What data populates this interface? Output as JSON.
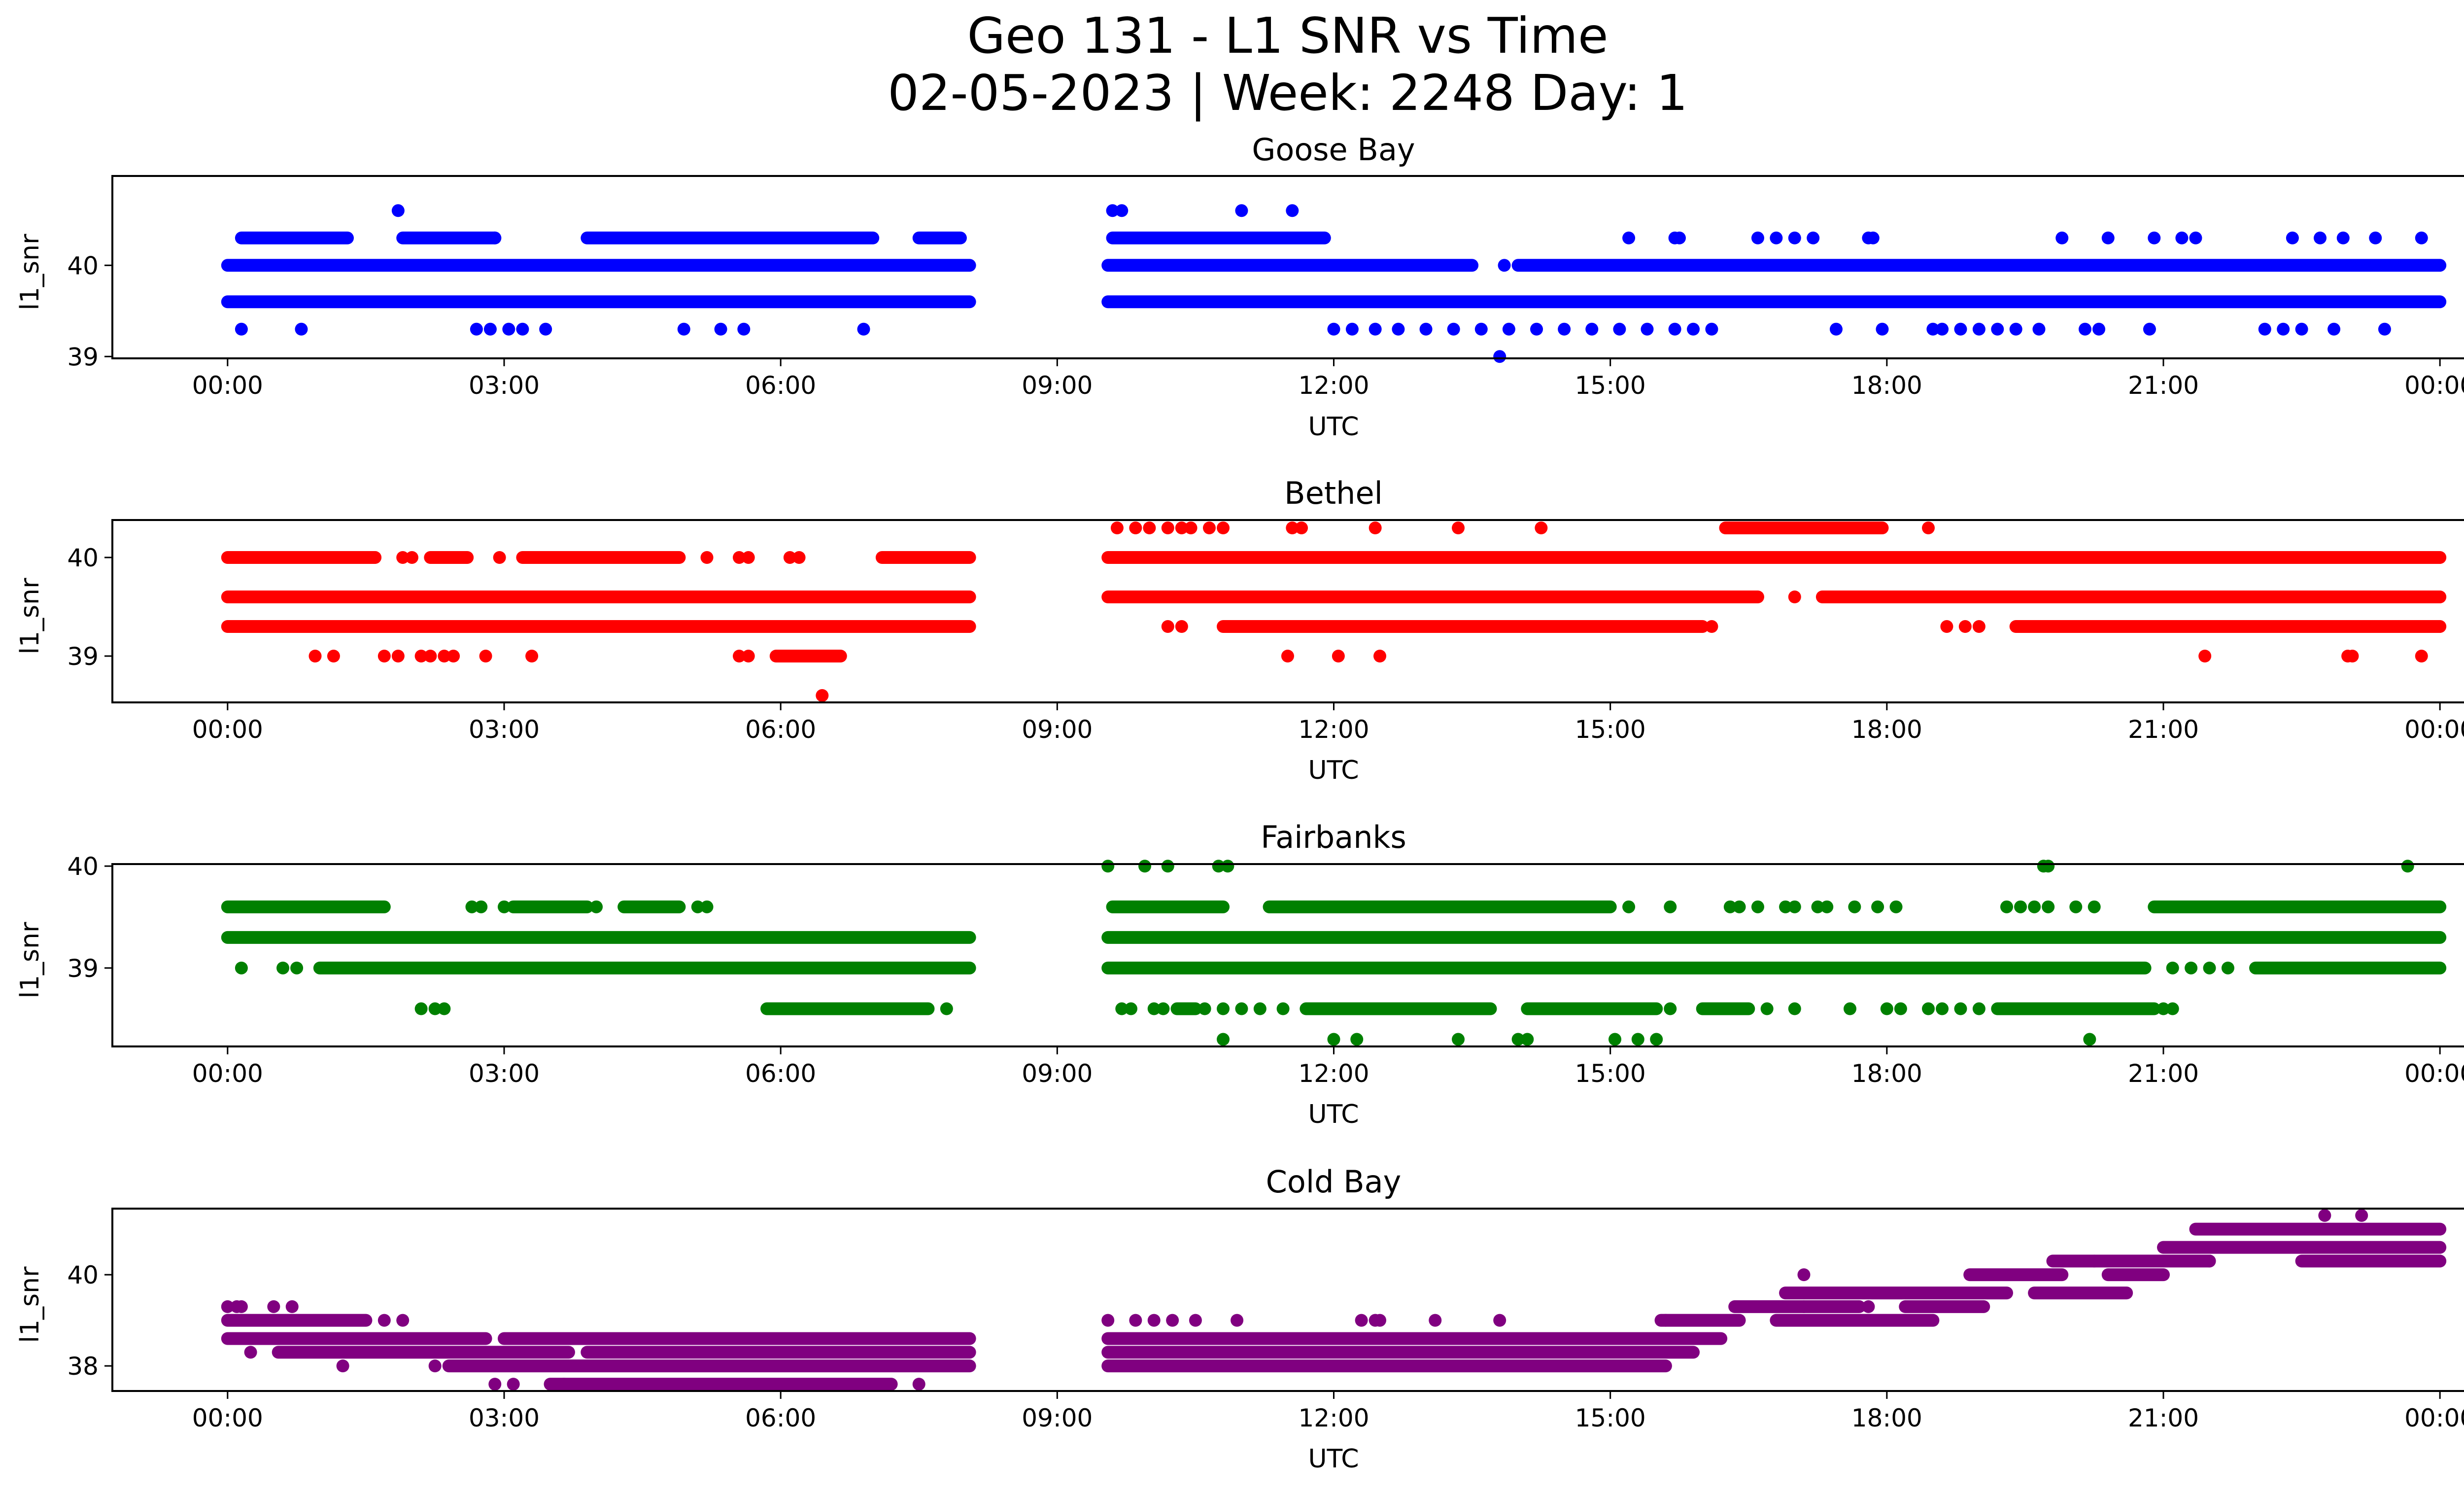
{
  "figure": {
    "title_line1": "Geo 131 - L1 SNR vs Time",
    "title_line2": "02-05-2023 | Week: 2248 Day: 1"
  },
  "chart_data": [
    {
      "type": "scatter",
      "title": "Goose Bay",
      "xlabel": "UTC",
      "ylabel": "l1_snr",
      "color": "#0000ff",
      "xlim": [
        -1.25,
        25.25
      ],
      "ylim": [
        38.98,
        40.98
      ],
      "xticks": [
        "00:00",
        "03:00",
        "06:00",
        "09:00",
        "12:00",
        "15:00",
        "18:00",
        "21:00",
        "00:00"
      ],
      "yticks": [
        39,
        40
      ],
      "data_gap": [
        8.05,
        9.55
      ],
      "levels": [
        {
          "y": 40.6,
          "points": [
            1.85,
            9.6,
            9.7,
            11.0,
            11.55
          ]
        },
        {
          "y": 40.3,
          "segments": [
            [
              0.15,
              1.3
            ],
            [
              1.9,
              2.9
            ],
            [
              3.9,
              7.0
            ],
            [
              7.5,
              7.95
            ],
            [
              9.6,
              11.9
            ]
          ],
          "points": [
            2.9,
            15.2,
            15.7,
            15.75,
            16.6,
            16.8,
            17.0,
            17.2,
            17.8,
            17.85,
            19.9,
            20.4,
            20.9,
            21.2,
            21.35,
            22.4,
            22.7,
            22.95,
            23.3,
            23.8
          ]
        },
        {
          "y": 40.0,
          "segments": [
            [
              0.0,
              8.05
            ],
            [
              9.55,
              13.5
            ],
            [
              14.0,
              24.0
            ]
          ],
          "points": [
            13.85
          ]
        },
        {
          "y": 39.6,
          "segments": [
            [
              0.0,
              8.05
            ],
            [
              9.55,
              24.0
            ]
          ]
        },
        {
          "y": 39.3,
          "points": [
            0.15,
            0.8,
            2.7,
            2.85,
            3.05,
            3.2,
            3.45,
            4.95,
            5.35,
            5.6,
            6.9,
            12.0,
            12.2,
            12.45,
            12.7,
            13.0,
            13.3,
            13.6,
            13.9,
            14.2,
            14.5,
            14.8,
            15.1,
            15.4,
            15.7,
            15.9,
            16.1,
            17.45,
            17.95,
            18.5,
            18.6,
            18.8,
            19.0,
            19.2,
            19.4,
            19.65,
            20.15,
            20.3,
            20.85,
            22.1,
            22.3,
            22.5,
            22.85,
            23.4
          ]
        },
        {
          "y": 39.0,
          "points": [
            13.8
          ]
        }
      ]
    },
    {
      "type": "scatter",
      "title": "Bethel",
      "xlabel": "UTC",
      "ylabel": "l1_snr",
      "color": "#ff0000",
      "xlim": [
        -1.25,
        25.25
      ],
      "ylim": [
        38.53,
        40.38
      ],
      "xticks": [
        "00:00",
        "03:00",
        "06:00",
        "09:00",
        "12:00",
        "15:00",
        "18:00",
        "21:00",
        "00:00"
      ],
      "yticks": [
        39,
        40
      ],
      "data_gap": [
        8.05,
        9.55
      ],
      "levels": [
        {
          "y": 40.3,
          "points": [
            9.65,
            9.85,
            10.0,
            10.2,
            10.35,
            10.45,
            10.65,
            10.8,
            11.55,
            11.65,
            12.45,
            13.35,
            14.25,
            18.45
          ],
          "segments": [
            [
              16.25,
              17.95
            ]
          ]
        },
        {
          "y": 40.0,
          "segments": [
            [
              0.0,
              1.6
            ],
            [
              2.2,
              2.6
            ],
            [
              3.2,
              4.9
            ],
            [
              7.1,
              8.05
            ],
            [
              9.55,
              24.0
            ]
          ],
          "points": [
            1.9,
            2.0,
            2.95,
            5.2,
            5.55,
            5.65,
            6.1,
            6.2
          ]
        },
        {
          "y": 39.6,
          "segments": [
            [
              0.0,
              8.05
            ],
            [
              9.55,
              16.6
            ],
            [
              17.3,
              24.0
            ]
          ],
          "points": [
            17.0
          ]
        },
        {
          "y": 39.3,
          "segments": [
            [
              0.0,
              8.05
            ],
            [
              10.8,
              16.0
            ],
            [
              19.4,
              24.0
            ]
          ],
          "points": [
            10.2,
            10.35,
            16.1,
            18.65,
            18.85,
            19.0
          ]
        },
        {
          "y": 39.0,
          "points": [
            0.95,
            1.15,
            1.7,
            1.85,
            2.1,
            2.2,
            2.35,
            2.45,
            2.8,
            3.3,
            5.55,
            5.65
          ],
          "segments": [
            [
              5.95,
              6.65
            ]
          ]
        },
        {
          "y": 39.0,
          "points": [
            11.5,
            12.05,
            12.5,
            21.45,
            23.0,
            23.05,
            23.8
          ]
        },
        {
          "y": 38.6,
          "points": [
            6.45
          ]
        }
      ]
    },
    {
      "type": "scatter",
      "title": "Fairbanks",
      "xlabel": "UTC",
      "ylabel": "l1_snr",
      "color": "#008000",
      "xlim": [
        -1.25,
        25.25
      ],
      "ylim": [
        38.23,
        40.02
      ],
      "xticks": [
        "00:00",
        "03:00",
        "06:00",
        "09:00",
        "12:00",
        "15:00",
        "18:00",
        "21:00",
        "00:00"
      ],
      "yticks": [
        39,
        40
      ],
      "data_gap": [
        8.05,
        9.55
      ],
      "levels": [
        {
          "y": 40.0,
          "points": [
            9.55,
            9.95,
            10.2,
            10.75,
            10.85,
            19.7,
            19.75,
            23.65
          ]
        },
        {
          "y": 39.6,
          "segments": [
            [
              0.0,
              1.7
            ],
            [
              3.1,
              3.9
            ],
            [
              4.3,
              4.9
            ],
            [
              9.6,
              10.8
            ],
            [
              11.3,
              15.0
            ],
            [
              20.9,
              24.0
            ]
          ],
          "points": [
            2.65,
            2.75,
            3.0,
            4.0,
            5.1,
            5.2,
            15.2,
            15.65,
            16.3,
            16.4,
            16.6,
            16.9,
            17.0,
            17.25,
            17.35,
            17.65,
            17.9,
            18.1,
            19.3,
            19.45,
            19.6,
            19.75,
            20.05,
            20.25
          ]
        },
        {
          "y": 39.3,
          "segments": [
            [
              0.0,
              8.05
            ],
            [
              9.55,
              24.0
            ]
          ]
        },
        {
          "y": 39.0,
          "segments": [
            [
              1.0,
              8.05
            ],
            [
              9.55,
              20.8
            ],
            [
              22.0,
              24.0
            ]
          ],
          "points": [
            0.15,
            0.6,
            0.75,
            21.1,
            21.3,
            21.5,
            21.7
          ]
        },
        {
          "y": 38.6,
          "segments": [
            [
              5.85,
              7.6
            ],
            [
              10.3,
              10.5
            ],
            [
              11.7,
              13.7
            ],
            [
              14.1,
              15.5
            ],
            [
              16.0,
              16.5
            ],
            [
              19.2,
              20.9
            ]
          ],
          "points": [
            2.1,
            2.25,
            2.35,
            7.8,
            9.7,
            9.8,
            10.05,
            10.15,
            10.6,
            10.8,
            11.0,
            11.2,
            11.45,
            15.65,
            16.7,
            17.0,
            17.6,
            18.0,
            18.15,
            18.45,
            18.6,
            18.8,
            19.0,
            21.0,
            21.1
          ]
        },
        {
          "y": 38.3,
          "points": [
            10.8,
            12.0,
            12.25,
            13.35,
            14.0,
            14.1,
            15.05,
            15.3,
            15.5,
            20.2
          ]
        }
      ]
    },
    {
      "type": "scatter",
      "title": "Cold Bay",
      "xlabel": "UTC",
      "ylabel": "l1_snr",
      "color": "#800080",
      "xlim": [
        -1.25,
        25.25
      ],
      "ylim": [
        37.45,
        41.45
      ],
      "xticks": [
        "00:00",
        "03:00",
        "06:00",
        "09:00",
        "12:00",
        "15:00",
        "18:00",
        "21:00",
        "00:00"
      ],
      "yticks": [
        38,
        40
      ],
      "data_gap": [
        8.05,
        9.55
      ],
      "levels": [
        {
          "y": 41.3,
          "points": [
            22.75,
            23.15
          ]
        },
        {
          "y": 41.0,
          "segments": [
            [
              21.35,
              24.0
            ]
          ]
        },
        {
          "y": 40.6,
          "segments": [
            [
              21.0,
              24.0
            ]
          ]
        },
        {
          "y": 40.3,
          "segments": [
            [
              19.8,
              21.5
            ],
            [
              22.5,
              24.0
            ]
          ],
          "points": [
            20.25,
            21.5
          ]
        },
        {
          "y": 40.0,
          "segments": [
            [
              18.9,
              19.9
            ],
            [
              20.4,
              21.0
            ]
          ],
          "points": [
            17.1
          ]
        },
        {
          "y": 39.6,
          "segments": [
            [
              16.9,
              19.3
            ],
            [
              19.6,
              20.6
            ]
          ]
        },
        {
          "y": 39.3,
          "segments": [
            [
              16.35,
              17.7
            ],
            [
              18.2,
              19.05
            ]
          ],
          "points": [
            17.1,
            17.8
          ]
        },
        {
          "y": 39.0,
          "segments": [
            [
              0.0,
              1.5
            ],
            [
              15.55,
              16.4
            ],
            [
              16.8,
              18.5
            ]
          ],
          "points": [
            1.7,
            1.9,
            9.55,
            9.85,
            10.05,
            10.25,
            10.5,
            10.95,
            12.3,
            12.45,
            12.5,
            13.1,
            13.8,
            15.6
          ]
        },
        {
          "y": 39.3,
          "points": [
            0.0,
            0.1,
            0.15,
            0.5,
            0.7
          ]
        },
        {
          "y": 38.6,
          "segments": [
            [
              0.0,
              2.8
            ],
            [
              3.0,
              8.05
            ],
            [
              9.55,
              16.2
            ]
          ]
        },
        {
          "y": 38.3,
          "segments": [
            [
              0.55,
              3.7
            ],
            [
              3.9,
              8.05
            ],
            [
              9.55,
              15.9
            ]
          ],
          "points": [
            0.25
          ]
        },
        {
          "y": 38.0,
          "segments": [
            [
              2.4,
              8.05
            ],
            [
              9.55,
              15.6
            ]
          ],
          "points": [
            1.25,
            2.25
          ]
        },
        {
          "y": 37.6,
          "segments": [
            [
              3.5,
              7.2
            ]
          ],
          "points": [
            2.9,
            3.1,
            3.65,
            7.5
          ]
        }
      ]
    }
  ]
}
